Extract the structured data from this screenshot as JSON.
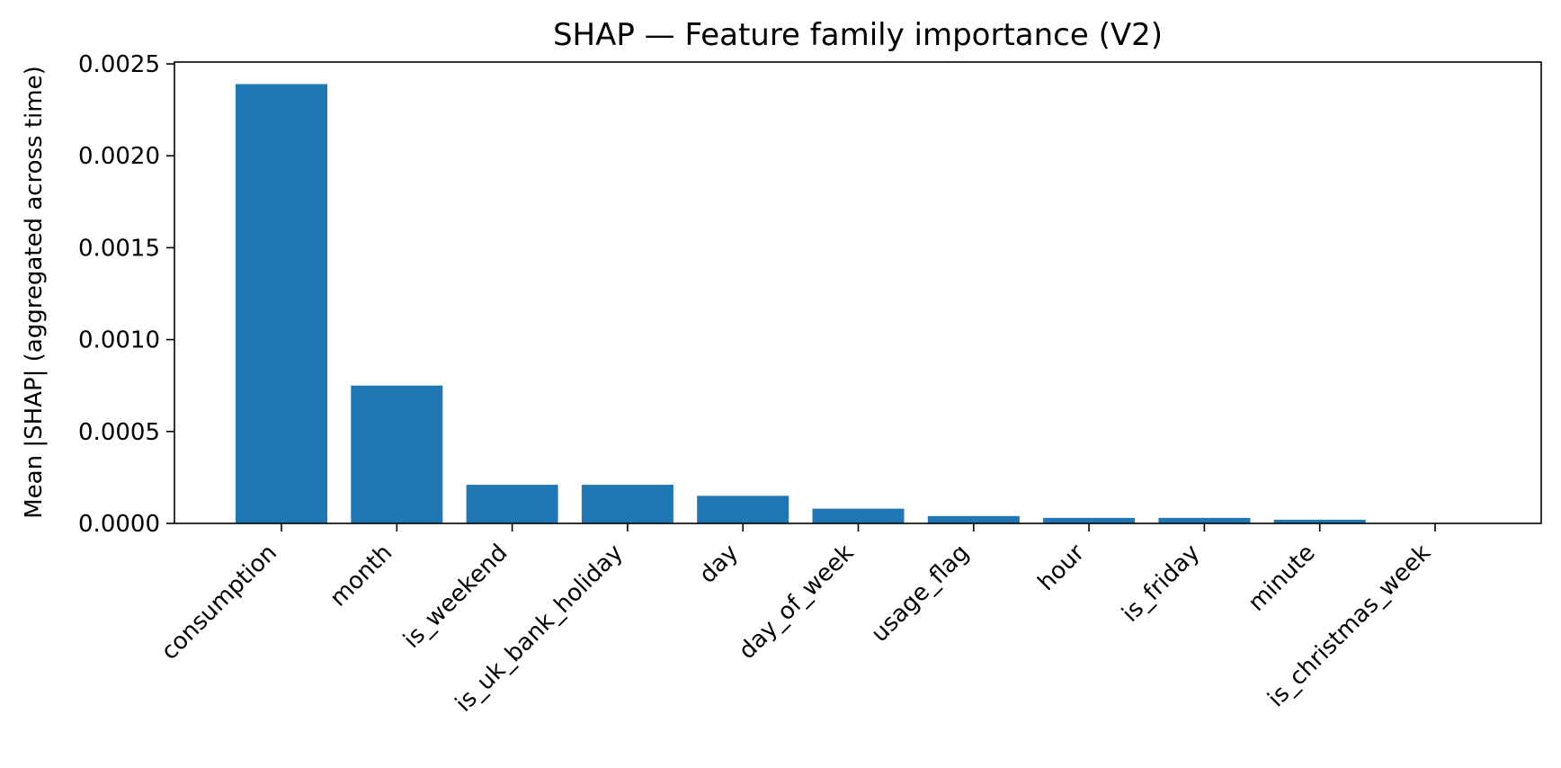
{
  "chart_data": {
    "type": "bar",
    "title": "SHAP — Feature family importance (V2)",
    "xlabel": "",
    "ylabel": "Mean |SHAP| (aggregated across time)",
    "categories": [
      "consumption",
      "month",
      "is_weekend",
      "is_uk_bank_holiday",
      "day",
      "day_of_week",
      "usage_flag",
      "hour",
      "is_friday",
      "minute",
      "is_christmas_week"
    ],
    "values": [
      0.00239,
      0.00075,
      0.00021,
      0.00021,
      0.00015,
      8e-05,
      4e-05,
      3e-05,
      3e-05,
      2e-05,
      0.0
    ],
    "yticks": [
      "0.0000",
      "0.0005",
      "0.0010",
      "0.0015",
      "0.0020",
      "0.0025"
    ],
    "ytick_values": [
      0,
      0.0005,
      0.001,
      0.0015,
      0.002,
      0.0025
    ],
    "ylim": [
      0,
      0.00251
    ],
    "grid": false,
    "legend": "none",
    "colors": {
      "bar": "#1f77b4",
      "axis": "#000000"
    }
  }
}
